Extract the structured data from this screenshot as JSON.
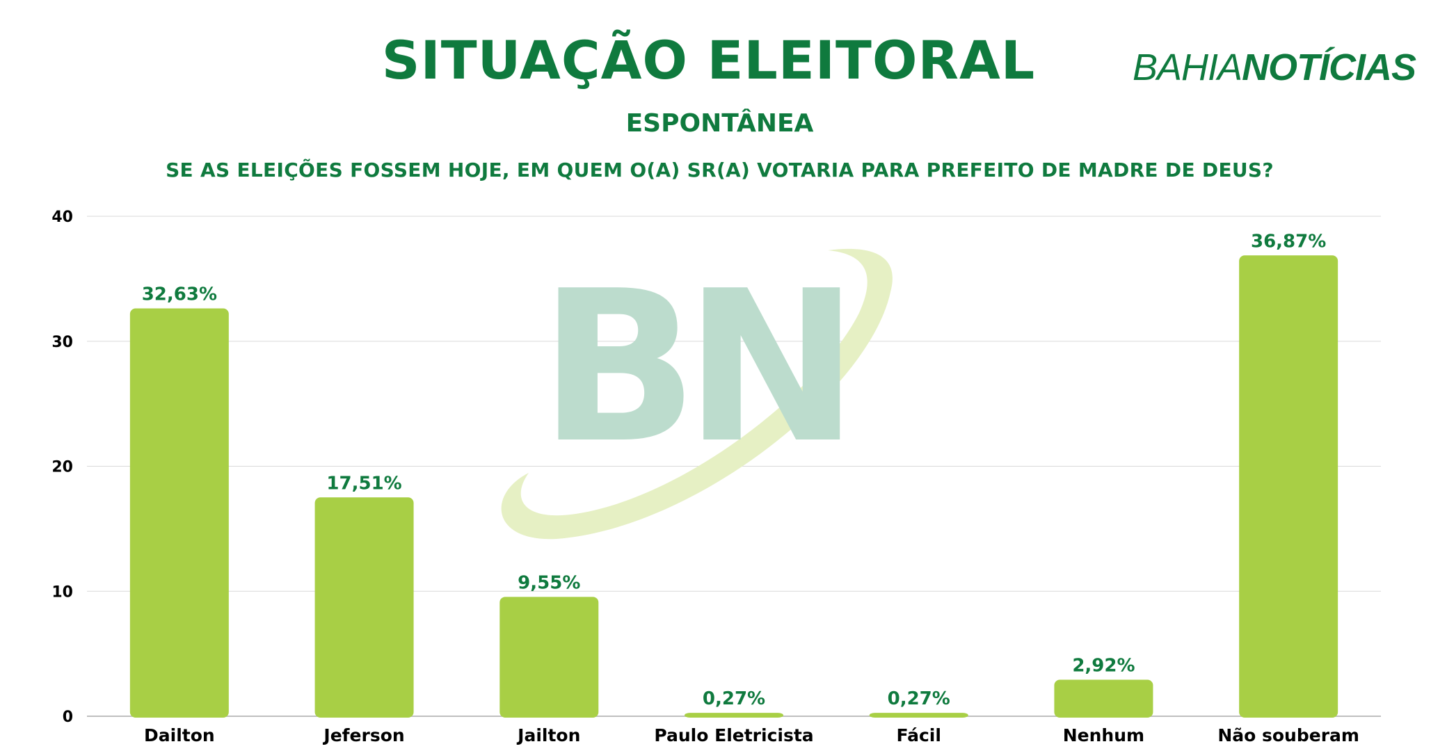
{
  "header": {
    "title": "SITUAÇÃO ELEITORAL",
    "subtitle": "ESPONTÂNEA",
    "question": "SE AS ELEIÇÕES FOSSEM HOJE, EM QUEM O(A) SR(A) VOTARIA PARA PREFEITO DE MADRE DE DEUS?"
  },
  "logo": {
    "part1": "BAHIA",
    "part2": "NOTÍCIAS",
    "watermark": "BN"
  },
  "colors": {
    "brand": "#0f7a3e",
    "bar": "#a8cf45",
    "grid": "#d9d9d9",
    "watermark_letters": "#bcdccd",
    "watermark_swoosh": "#e6f0c4"
  },
  "chart_data": {
    "type": "bar",
    "categories": [
      "Dailton",
      "Jeferson",
      "Jailton",
      "Paulo Eletricista",
      "Fácil",
      "Nenhum",
      "Não souberam"
    ],
    "values": [
      32.63,
      17.51,
      9.55,
      0.27,
      0.27,
      2.92,
      36.87
    ],
    "data_labels": [
      "32,63%",
      "17,51%",
      "9,55%",
      "0,27%",
      "0,27%",
      "2,92%",
      "36,87%"
    ],
    "ylim": [
      0,
      40
    ],
    "yticks": [
      0,
      10,
      20,
      30,
      40
    ],
    "grid": true,
    "legend": "none"
  }
}
